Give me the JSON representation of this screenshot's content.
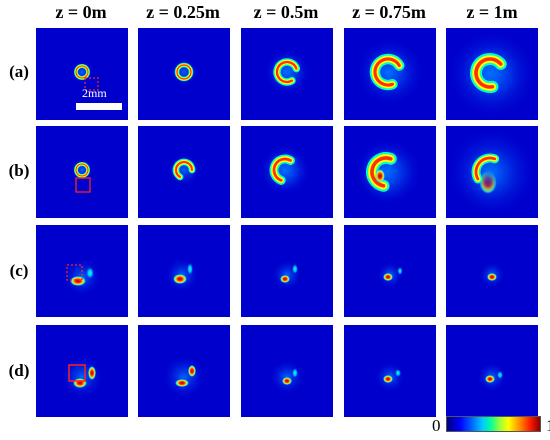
{
  "column_headers": [
    "z = 0m",
    "z = 0.25m",
    "z = 0.5m",
    "z = 0.75m",
    "z = 1m"
  ],
  "row_labels": [
    "(a)",
    "(b)",
    "(c)",
    "(d)"
  ],
  "scale_bar_label": "2mm",
  "colorbar": {
    "min_label": "0",
    "max_label": "1",
    "colormap": "jet"
  },
  "colors": {
    "background": "#0000cd",
    "marker_box": "#ff2020"
  }
}
